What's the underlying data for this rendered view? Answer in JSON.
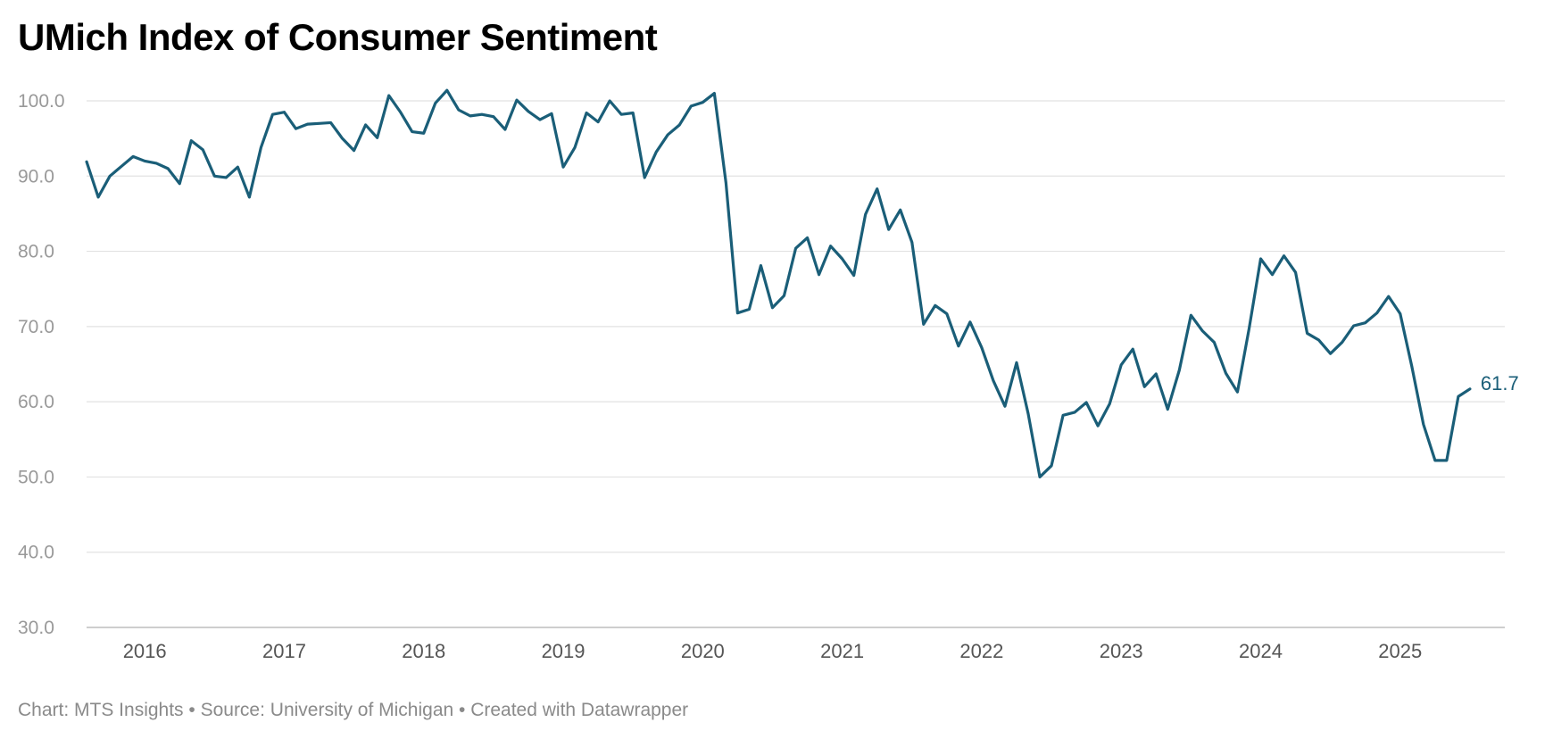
{
  "colors": {
    "line": "#1a5e78",
    "grid": "#e2e2e2",
    "axis": "#bdbdbd"
  },
  "chart_data": {
    "type": "line",
    "title": "UMich Index of Consumer Sentiment",
    "xlabel": "",
    "ylabel": "",
    "ylim": [
      30,
      100
    ],
    "xlim": [
      2015.583,
      2025.75
    ],
    "y_ticks": [
      "30.0",
      "40.0",
      "50.0",
      "60.0",
      "70.0",
      "80.0",
      "90.0",
      "100.0"
    ],
    "x_ticks": [
      "2016",
      "2017",
      "2018",
      "2019",
      "2020",
      "2021",
      "2022",
      "2023",
      "2024",
      "2025"
    ],
    "grid": true,
    "series": [
      {
        "name": "Index of Consumer Sentiment",
        "start": "2015-08",
        "frequency": "monthly",
        "end_label": "61.7",
        "values": [
          91.9,
          87.2,
          90.0,
          91.3,
          92.6,
          92.0,
          91.7,
          91.0,
          89.0,
          94.7,
          93.5,
          90.0,
          89.8,
          91.2,
          87.2,
          93.8,
          98.2,
          98.5,
          96.3,
          96.9,
          97.0,
          97.1,
          95.0,
          93.4,
          96.8,
          95.1,
          100.7,
          98.5,
          95.9,
          95.7,
          99.7,
          101.4,
          98.8,
          98.0,
          98.2,
          97.9,
          96.2,
          100.1,
          98.6,
          97.5,
          98.3,
          91.2,
          93.8,
          98.4,
          97.2,
          100.0,
          98.2,
          98.4,
          89.8,
          93.2,
          95.5,
          96.8,
          99.3,
          99.8,
          101.0,
          89.1,
          71.8,
          72.3,
          78.1,
          72.5,
          74.1,
          80.4,
          81.8,
          76.9,
          80.7,
          79.0,
          76.8,
          84.9,
          88.3,
          82.9,
          85.5,
          81.2,
          70.3,
          72.8,
          71.7,
          67.4,
          70.6,
          67.2,
          62.8,
          59.4,
          65.2,
          58.4,
          50.0,
          51.5,
          58.2,
          58.6,
          59.9,
          56.8,
          59.7,
          64.9,
          67.0,
          62.0,
          63.7,
          59.0,
          64.2,
          71.5,
          69.4,
          67.9,
          63.8,
          61.3,
          69.7,
          79.0,
          76.9,
          79.4,
          77.2,
          69.1,
          68.2,
          66.4,
          67.9,
          70.1,
          70.5,
          71.8,
          74.0,
          71.7,
          64.7,
          57.0,
          52.2,
          52.2,
          60.7,
          61.7
        ]
      }
    ],
    "footer": "Chart: MTS Insights • Source: University of Michigan • Created with Datawrapper"
  }
}
